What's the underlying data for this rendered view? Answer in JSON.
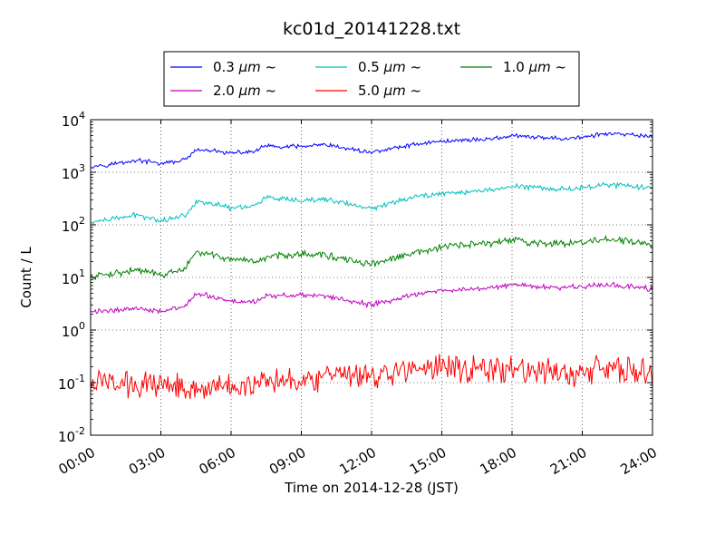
{
  "chart_data": {
    "type": "line",
    "title": "kc01d_20141228.txt",
    "xlabel": "Time on 2014-12-28 (JST)",
    "ylabel": "Count / L",
    "yscale": "log",
    "xlim": [
      0,
      24
    ],
    "ylim": [
      0.01,
      10000
    ],
    "grid": true,
    "legend_position": "top-center",
    "x_tick_labels": [
      "00:00",
      "03:00",
      "06:00",
      "09:00",
      "12:00",
      "15:00",
      "18:00",
      "21:00",
      "24:00"
    ],
    "y_tick_labels": [
      {
        "base": "10",
        "exp": "-2"
      },
      {
        "base": "10",
        "exp": "-1"
      },
      {
        "base": "10",
        "exp": "0"
      },
      {
        "base": "10",
        "exp": "1"
      },
      {
        "base": "10",
        "exp": "2"
      },
      {
        "base": "10",
        "exp": "3"
      },
      {
        "base": "10",
        "exp": "4"
      }
    ],
    "x_hours": [
      0,
      1,
      2,
      3,
      4,
      4.5,
      5,
      6,
      7,
      7.5,
      8,
      9,
      10,
      11,
      12,
      13,
      14,
      15,
      16,
      17,
      18,
      19,
      20,
      21,
      21.5,
      22,
      23,
      24
    ],
    "series": [
      {
        "name": "0.3 μm ~",
        "legend_main": "0.3 ",
        "legend_unit": "μm",
        "legend_suffix": " ~",
        "color": "#0000ff",
        "noise": 0.05,
        "values": [
          1300,
          1450,
          1700,
          1450,
          1700,
          2600,
          2600,
          2300,
          2500,
          3200,
          3000,
          3100,
          3300,
          2800,
          2400,
          2900,
          3500,
          3900,
          4100,
          4300,
          4900,
          4600,
          4400,
          4600,
          5000,
          5400,
          5100,
          4800
        ]
      },
      {
        "name": "0.5 μm ~",
        "legend_main": "0.5 ",
        "legend_unit": "μm",
        "legend_suffix": " ~",
        "color": "#00bfbf",
        "noise": 0.06,
        "values": [
          110,
          130,
          155,
          120,
          150,
          270,
          270,
          210,
          230,
          340,
          310,
          280,
          310,
          250,
          200,
          280,
          350,
          400,
          420,
          450,
          550,
          520,
          480,
          500,
          560,
          590,
          540,
          500
        ]
      },
      {
        "name": "1.0 μm ~",
        "legend_main": "1.0 ",
        "legend_unit": "μm",
        "legend_suffix": " ~",
        "color": "#008000",
        "noise": 0.08,
        "values": [
          10,
          12,
          14,
          11,
          14,
          30,
          28,
          22,
          19,
          24,
          26,
          28,
          27,
          21,
          18,
          23,
          30,
          37,
          42,
          44,
          52,
          45,
          44,
          46,
          50,
          52,
          49,
          40
        ]
      },
      {
        "name": "2.0 μm ~",
        "legend_main": "2.0 ",
        "legend_unit": "μm",
        "legend_suffix": " ~",
        "color": "#bf00bf",
        "noise": 0.06,
        "values": [
          2.2,
          2.4,
          2.6,
          2.3,
          2.7,
          4.8,
          4.5,
          3.5,
          3.5,
          4.4,
          4.5,
          4.6,
          4.4,
          3.6,
          3.0,
          3.8,
          5.0,
          5.5,
          6.0,
          6.3,
          7.4,
          6.8,
          6.5,
          6.6,
          7.0,
          7.3,
          6.9,
          6.0
        ]
      },
      {
        "name": "5.0 μm ~",
        "legend_main": "5.0 ",
        "legend_unit": "μm",
        "legend_suffix": " ~",
        "color": "#ff0000",
        "noise": 0.3,
        "values": [
          0.1,
          0.1,
          0.09,
          0.1,
          0.09,
          0.08,
          0.08,
          0.08,
          0.1,
          0.12,
          0.13,
          0.12,
          0.12,
          0.13,
          0.13,
          0.16,
          0.18,
          0.2,
          0.19,
          0.17,
          0.18,
          0.16,
          0.15,
          0.16,
          0.18,
          0.19,
          0.17,
          0.15
        ]
      }
    ]
  }
}
